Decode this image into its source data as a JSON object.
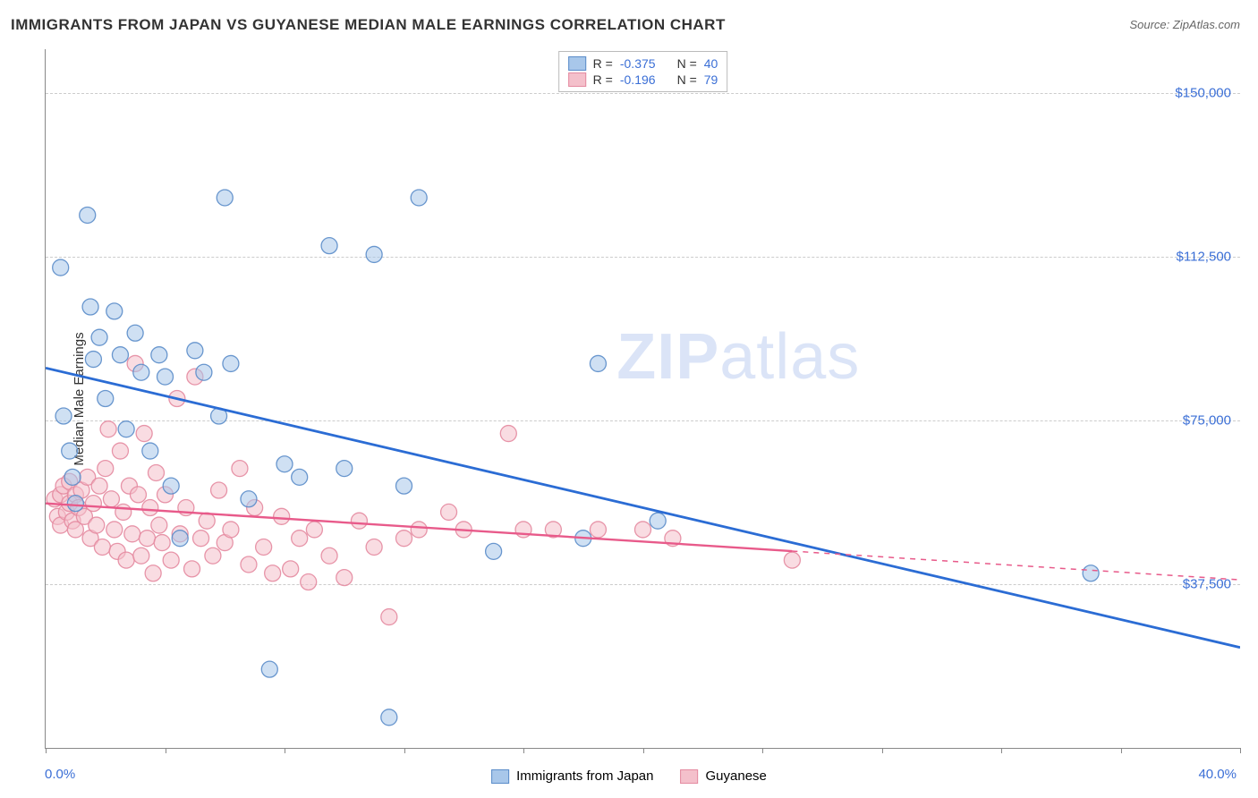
{
  "title": "IMMIGRANTS FROM JAPAN VS GUYANESE MEDIAN MALE EARNINGS CORRELATION CHART",
  "source_label": "Source: ZipAtlas.com",
  "watermark_zip": "ZIP",
  "watermark_atlas": "atlas",
  "chart": {
    "type": "scatter",
    "background_color": "#ffffff",
    "grid_color": "#cccccc",
    "axis_color": "#888888",
    "label_color": "#333333",
    "tick_label_color": "#3b6fd6",
    "yaxis_label": "Median Male Earnings",
    "xlim": [
      0,
      40
    ],
    "ylim": [
      0,
      160000
    ],
    "xaxis_min_label": "0.0%",
    "xaxis_max_label": "40.0%",
    "ytick_values": [
      37500,
      75000,
      112500,
      150000
    ],
    "ytick_labels": [
      "$37,500",
      "$75,000",
      "$112,500",
      "$150,000"
    ],
    "xtick_values": [
      0,
      4,
      8,
      12,
      16,
      20,
      24,
      28,
      32,
      36,
      40
    ],
    "marker_radius": 9,
    "marker_opacity": 0.55,
    "marker_stroke_width": 1.3,
    "series": [
      {
        "name": "Immigrants from Japan",
        "fill_color": "#a8c7ea",
        "stroke_color": "#5a8cc9",
        "line_color": "#2b6cd4",
        "line_width": 2.8,
        "r_value": "-0.375",
        "n_value": "40",
        "trend": {
          "x1": 0,
          "y1": 87000,
          "x2": 40,
          "y2": 23000
        },
        "points": [
          [
            0.5,
            110000
          ],
          [
            0.6,
            76000
          ],
          [
            0.8,
            68000
          ],
          [
            0.9,
            62000
          ],
          [
            1.0,
            56000
          ],
          [
            1.4,
            122000
          ],
          [
            1.5,
            101000
          ],
          [
            1.6,
            89000
          ],
          [
            1.8,
            94000
          ],
          [
            2.0,
            80000
          ],
          [
            2.3,
            100000
          ],
          [
            2.5,
            90000
          ],
          [
            2.7,
            73000
          ],
          [
            3.0,
            95000
          ],
          [
            3.2,
            86000
          ],
          [
            3.5,
            68000
          ],
          [
            3.8,
            90000
          ],
          [
            4.0,
            85000
          ],
          [
            4.2,
            60000
          ],
          [
            4.5,
            48000
          ],
          [
            5.0,
            91000
          ],
          [
            5.3,
            86000
          ],
          [
            5.8,
            76000
          ],
          [
            6.0,
            126000
          ],
          [
            6.2,
            88000
          ],
          [
            6.8,
            57000
          ],
          [
            7.5,
            18000
          ],
          [
            8.0,
            65000
          ],
          [
            8.5,
            62000
          ],
          [
            9.5,
            115000
          ],
          [
            10.0,
            64000
          ],
          [
            11.0,
            113000
          ],
          [
            11.5,
            7000
          ],
          [
            12.0,
            60000
          ],
          [
            12.5,
            126000
          ],
          [
            15.0,
            45000
          ],
          [
            18.0,
            48000
          ],
          [
            18.5,
            88000
          ],
          [
            20.5,
            52000
          ],
          [
            35.0,
            40000
          ]
        ]
      },
      {
        "name": "Guyanese",
        "fill_color": "#f4c0cb",
        "stroke_color": "#e48aa0",
        "line_color": "#e85a8a",
        "line_width": 2.4,
        "dash_after_x": 25.0,
        "r_value": "-0.196",
        "n_value": "79",
        "trend": {
          "x1": 0,
          "y1": 56000,
          "x2": 40,
          "y2": 38500
        },
        "points": [
          [
            0.3,
            57000
          ],
          [
            0.4,
            53000
          ],
          [
            0.5,
            51000
          ],
          [
            0.5,
            58000
          ],
          [
            0.6,
            60000
          ],
          [
            0.7,
            54000
          ],
          [
            0.8,
            56000
          ],
          [
            0.8,
            61000
          ],
          [
            0.9,
            52000
          ],
          [
            1.0,
            58000
          ],
          [
            1.0,
            50000
          ],
          [
            1.1,
            55000
          ],
          [
            1.2,
            59000
          ],
          [
            1.3,
            53000
          ],
          [
            1.4,
            62000
          ],
          [
            1.5,
            48000
          ],
          [
            1.6,
            56000
          ],
          [
            1.7,
            51000
          ],
          [
            1.8,
            60000
          ],
          [
            1.9,
            46000
          ],
          [
            2.0,
            64000
          ],
          [
            2.1,
            73000
          ],
          [
            2.2,
            57000
          ],
          [
            2.3,
            50000
          ],
          [
            2.4,
            45000
          ],
          [
            2.5,
            68000
          ],
          [
            2.6,
            54000
          ],
          [
            2.7,
            43000
          ],
          [
            2.8,
            60000
          ],
          [
            2.9,
            49000
          ],
          [
            3.0,
            88000
          ],
          [
            3.1,
            58000
          ],
          [
            3.2,
            44000
          ],
          [
            3.3,
            72000
          ],
          [
            3.4,
            48000
          ],
          [
            3.5,
            55000
          ],
          [
            3.6,
            40000
          ],
          [
            3.7,
            63000
          ],
          [
            3.8,
            51000
          ],
          [
            3.9,
            47000
          ],
          [
            4.0,
            58000
          ],
          [
            4.2,
            43000
          ],
          [
            4.4,
            80000
          ],
          [
            4.5,
            49000
          ],
          [
            4.7,
            55000
          ],
          [
            4.9,
            41000
          ],
          [
            5.0,
            85000
          ],
          [
            5.2,
            48000
          ],
          [
            5.4,
            52000
          ],
          [
            5.6,
            44000
          ],
          [
            5.8,
            59000
          ],
          [
            6.0,
            47000
          ],
          [
            6.2,
            50000
          ],
          [
            6.5,
            64000
          ],
          [
            6.8,
            42000
          ],
          [
            7.0,
            55000
          ],
          [
            7.3,
            46000
          ],
          [
            7.6,
            40000
          ],
          [
            7.9,
            53000
          ],
          [
            8.2,
            41000
          ],
          [
            8.5,
            48000
          ],
          [
            8.8,
            38000
          ],
          [
            9.0,
            50000
          ],
          [
            9.5,
            44000
          ],
          [
            10.0,
            39000
          ],
          [
            10.5,
            52000
          ],
          [
            11.0,
            46000
          ],
          [
            11.5,
            30000
          ],
          [
            12.0,
            48000
          ],
          [
            12.5,
            50000
          ],
          [
            13.5,
            54000
          ],
          [
            14.0,
            50000
          ],
          [
            15.5,
            72000
          ],
          [
            16.0,
            50000
          ],
          [
            17.0,
            50000
          ],
          [
            18.5,
            50000
          ],
          [
            20.0,
            50000
          ],
          [
            21.0,
            48000
          ],
          [
            25.0,
            43000
          ]
        ]
      }
    ]
  },
  "legend_top": {
    "r_label": "R =",
    "n_label": "N ="
  },
  "legend_bottom": {
    "series1_label": "Immigrants from Japan",
    "series2_label": "Guyanese"
  }
}
